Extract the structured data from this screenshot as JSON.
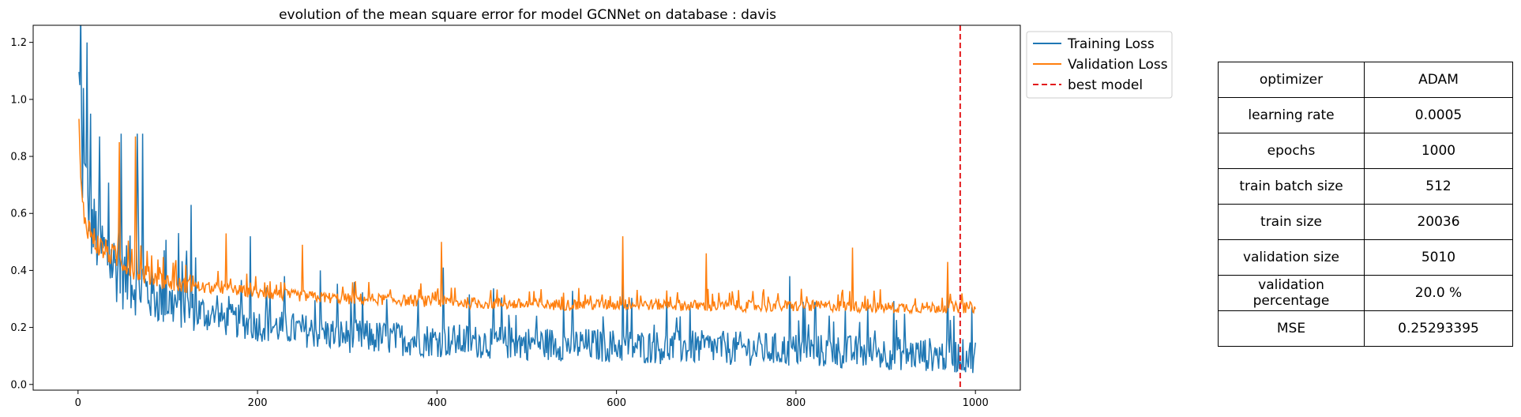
{
  "chart_data": {
    "type": "line",
    "title": "evolution of the mean square error for model GCNNet on database : davis",
    "xlabel": "",
    "ylabel": "",
    "xlim": [
      -50,
      1050
    ],
    "ylim": [
      -0.02,
      1.26
    ],
    "xticks": [
      0,
      200,
      400,
      600,
      800,
      1000
    ],
    "yticks": [
      0.0,
      0.2,
      0.4,
      0.6,
      0.8,
      1.0,
      1.2
    ],
    "legend_position": "outside-top-right",
    "series": [
      {
        "name": "Training Loss",
        "color": "#1f77b4",
        "x": [
          1,
          3,
          5,
          8,
          12,
          16,
          20,
          25,
          30,
          35,
          40,
          45,
          50,
          55,
          60,
          65,
          70,
          80,
          90,
          100,
          110,
          125,
          140,
          160,
          180,
          200,
          225,
          250,
          275,
          300,
          330,
          360,
          400,
          450,
          500,
          550,
          600,
          650,
          700,
          750,
          800,
          850,
          900,
          950,
          975,
          1000
        ],
        "values": [
          1.05,
          0.95,
          0.75,
          0.7,
          0.62,
          0.55,
          0.52,
          0.48,
          0.46,
          0.44,
          0.42,
          0.4,
          0.38,
          0.37,
          0.36,
          0.35,
          0.34,
          0.32,
          0.3,
          0.29,
          0.28,
          0.26,
          0.25,
          0.23,
          0.22,
          0.21,
          0.2,
          0.19,
          0.18,
          0.17,
          0.165,
          0.16,
          0.155,
          0.15,
          0.145,
          0.14,
          0.135,
          0.13,
          0.13,
          0.125,
          0.12,
          0.115,
          0.11,
          0.105,
          0.1,
          0.1
        ],
        "noise": 0.06,
        "spikes": [
          {
            "x": 2,
            "y": 1.05
          },
          {
            "x": 6,
            "y": 1.04
          },
          {
            "x": 10,
            "y": 1.2
          },
          {
            "x": 14,
            "y": 0.95
          },
          {
            "x": 24,
            "y": 0.87
          },
          {
            "x": 48,
            "y": 0.88
          },
          {
            "x": 66,
            "y": 0.88
          },
          {
            "x": 72,
            "y": 0.88
          },
          {
            "x": 126,
            "y": 0.63
          },
          {
            "x": 192,
            "y": 0.52
          },
          {
            "x": 270,
            "y": 0.4
          },
          {
            "x": 407,
            "y": 0.41
          },
          {
            "x": 607,
            "y": 0.42
          },
          {
            "x": 793,
            "y": 0.38
          },
          {
            "x": 969,
            "y": 0.37
          }
        ]
      },
      {
        "name": "Validation Loss",
        "color": "#ff7f0e",
        "x": [
          1,
          3,
          5,
          8,
          12,
          16,
          20,
          25,
          30,
          35,
          40,
          45,
          50,
          55,
          60,
          65,
          70,
          80,
          90,
          100,
          110,
          125,
          140,
          160,
          180,
          200,
          225,
          250,
          275,
          300,
          330,
          360,
          400,
          450,
          500,
          550,
          600,
          650,
          700,
          750,
          800,
          850,
          900,
          950,
          975,
          1000
        ],
        "values": [
          0.94,
          0.7,
          0.62,
          0.58,
          0.55,
          0.52,
          0.5,
          0.48,
          0.47,
          0.46,
          0.45,
          0.44,
          0.43,
          0.42,
          0.41,
          0.4,
          0.39,
          0.38,
          0.37,
          0.36,
          0.35,
          0.345,
          0.34,
          0.335,
          0.33,
          0.32,
          0.315,
          0.31,
          0.305,
          0.3,
          0.3,
          0.295,
          0.29,
          0.285,
          0.28,
          0.28,
          0.28,
          0.28,
          0.275,
          0.275,
          0.275,
          0.275,
          0.27,
          0.27,
          0.27,
          0.27
        ],
        "noise": 0.02,
        "spikes": [
          {
            "x": 46,
            "y": 0.85
          },
          {
            "x": 64,
            "y": 0.87
          },
          {
            "x": 165,
            "y": 0.53
          },
          {
            "x": 250,
            "y": 0.49
          },
          {
            "x": 405,
            "y": 0.5
          },
          {
            "x": 607,
            "y": 0.52
          },
          {
            "x": 700,
            "y": 0.46
          },
          {
            "x": 863,
            "y": 0.48
          },
          {
            "x": 969,
            "y": 0.43
          }
        ]
      }
    ],
    "vlines": [
      {
        "name": "best model",
        "x": 983,
        "color": "#e31a1c",
        "style": "dashed"
      }
    ]
  },
  "params_table": [
    {
      "key": "optimizer",
      "value": "ADAM"
    },
    {
      "key": "learning rate",
      "value": "0.0005"
    },
    {
      "key": "epochs",
      "value": "1000"
    },
    {
      "key": "train batch size",
      "value": "512"
    },
    {
      "key": "train size",
      "value": "20036"
    },
    {
      "key": "validation size",
      "value": "5010"
    },
    {
      "key": "validation percentage",
      "value": "20.0 %"
    },
    {
      "key": "MSE",
      "value": "0.25293395"
    }
  ]
}
